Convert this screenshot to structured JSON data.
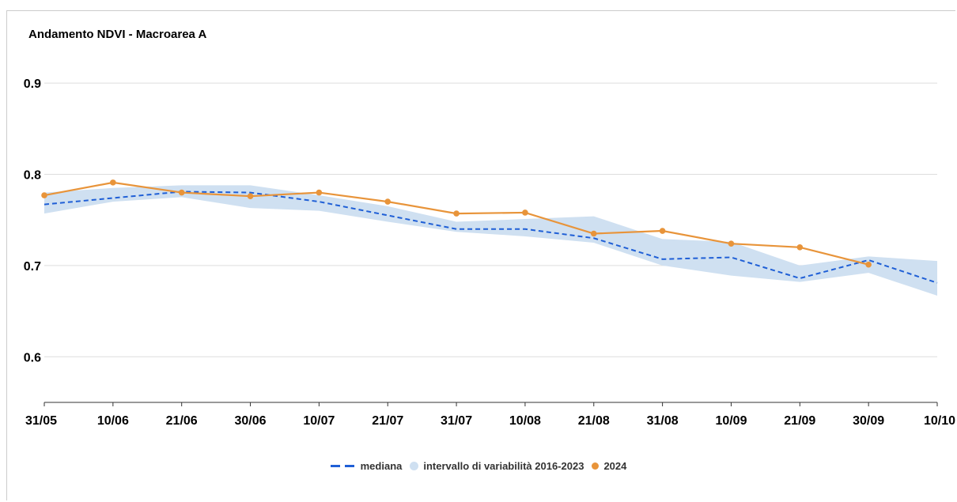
{
  "chart_data": {
    "type": "line",
    "title": "Andamento NDVI - Macroarea A",
    "xlabel": "",
    "ylabel": "",
    "categories": [
      "31/05",
      "10/06",
      "21/06",
      "30/06",
      "10/07",
      "21/07",
      "31/07",
      "10/08",
      "21/08",
      "31/08",
      "10/09",
      "21/09",
      "30/09",
      "10/10"
    ],
    "ylim": [
      0.55,
      0.92
    ],
    "yticks": [
      0.6,
      0.7,
      0.8,
      0.9
    ],
    "ytick_labels": [
      "0.6",
      "0.7",
      "0.8",
      "0.9"
    ],
    "grid": true,
    "legend_position": "bottom-center",
    "band": {
      "name": "intervallo di variabilità 2016-2023",
      "color": "#cfe0f1",
      "upper": [
        0.78,
        0.785,
        0.788,
        0.788,
        0.777,
        0.765,
        0.748,
        0.751,
        0.754,
        0.729,
        0.726,
        0.7,
        0.71,
        0.705
      ],
      "lower": [
        0.757,
        0.77,
        0.775,
        0.763,
        0.76,
        0.748,
        0.737,
        0.732,
        0.725,
        0.7,
        0.689,
        0.682,
        0.692,
        0.667
      ]
    },
    "series": [
      {
        "name": "mediana",
        "color": "#1f5fd6",
        "style": "dashed",
        "values": [
          0.767,
          0.774,
          0.781,
          0.78,
          0.77,
          0.755,
          0.74,
          0.74,
          0.73,
          0.707,
          0.709,
          0.686,
          0.706,
          0.681
        ]
      },
      {
        "name": "2024",
        "color": "#e8943a",
        "style": "solid-markers",
        "values": [
          0.777,
          0.791,
          0.78,
          0.776,
          0.78,
          0.77,
          0.757,
          0.758,
          0.735,
          0.738,
          0.724,
          0.72,
          0.701,
          null
        ]
      }
    ]
  }
}
